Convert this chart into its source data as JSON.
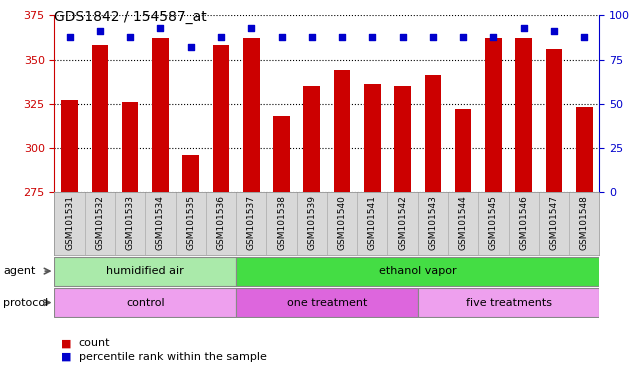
{
  "title": "GDS1842 / 154587_at",
  "samples": [
    "GSM101531",
    "GSM101532",
    "GSM101533",
    "GSM101534",
    "GSM101535",
    "GSM101536",
    "GSM101537",
    "GSM101538",
    "GSM101539",
    "GSM101540",
    "GSM101541",
    "GSM101542",
    "GSM101543",
    "GSM101544",
    "GSM101545",
    "GSM101546",
    "GSM101547",
    "GSM101548"
  ],
  "counts": [
    327,
    358,
    326,
    362,
    296,
    358,
    362,
    318,
    335,
    344,
    336,
    335,
    341,
    322,
    362,
    362,
    356,
    323
  ],
  "percentiles": [
    88,
    91,
    88,
    93,
    82,
    88,
    93,
    88,
    88,
    88,
    88,
    88,
    88,
    88,
    88,
    93,
    91,
    88
  ],
  "ylim_left": [
    275,
    375
  ],
  "ylim_right": [
    0,
    100
  ],
  "yticks_left": [
    275,
    300,
    325,
    350,
    375
  ],
  "yticks_right": [
    0,
    25,
    50,
    75,
    100
  ],
  "bar_color": "#cc0000",
  "dot_color": "#0000cc",
  "agent_groups": [
    {
      "label": "humidified air",
      "start": 0,
      "end": 6,
      "color": "#aaeaaa"
    },
    {
      "label": "ethanol vapor",
      "start": 6,
      "end": 18,
      "color": "#44dd44"
    }
  ],
  "protocol_groups": [
    {
      "label": "control",
      "start": 0,
      "end": 6,
      "color": "#eea0ee"
    },
    {
      "label": "one treatment",
      "start": 6,
      "end": 12,
      "color": "#dd66dd"
    },
    {
      "label": "five treatments",
      "start": 12,
      "end": 18,
      "color": "#eea0ee"
    }
  ],
  "legend_count_color": "#cc0000",
  "legend_dot_color": "#0000cc",
  "background_color": "#ffffff",
  "plot_bg_color": "#ffffff",
  "label_bg_color": "#d8d8d8",
  "grid_color": "#000000"
}
